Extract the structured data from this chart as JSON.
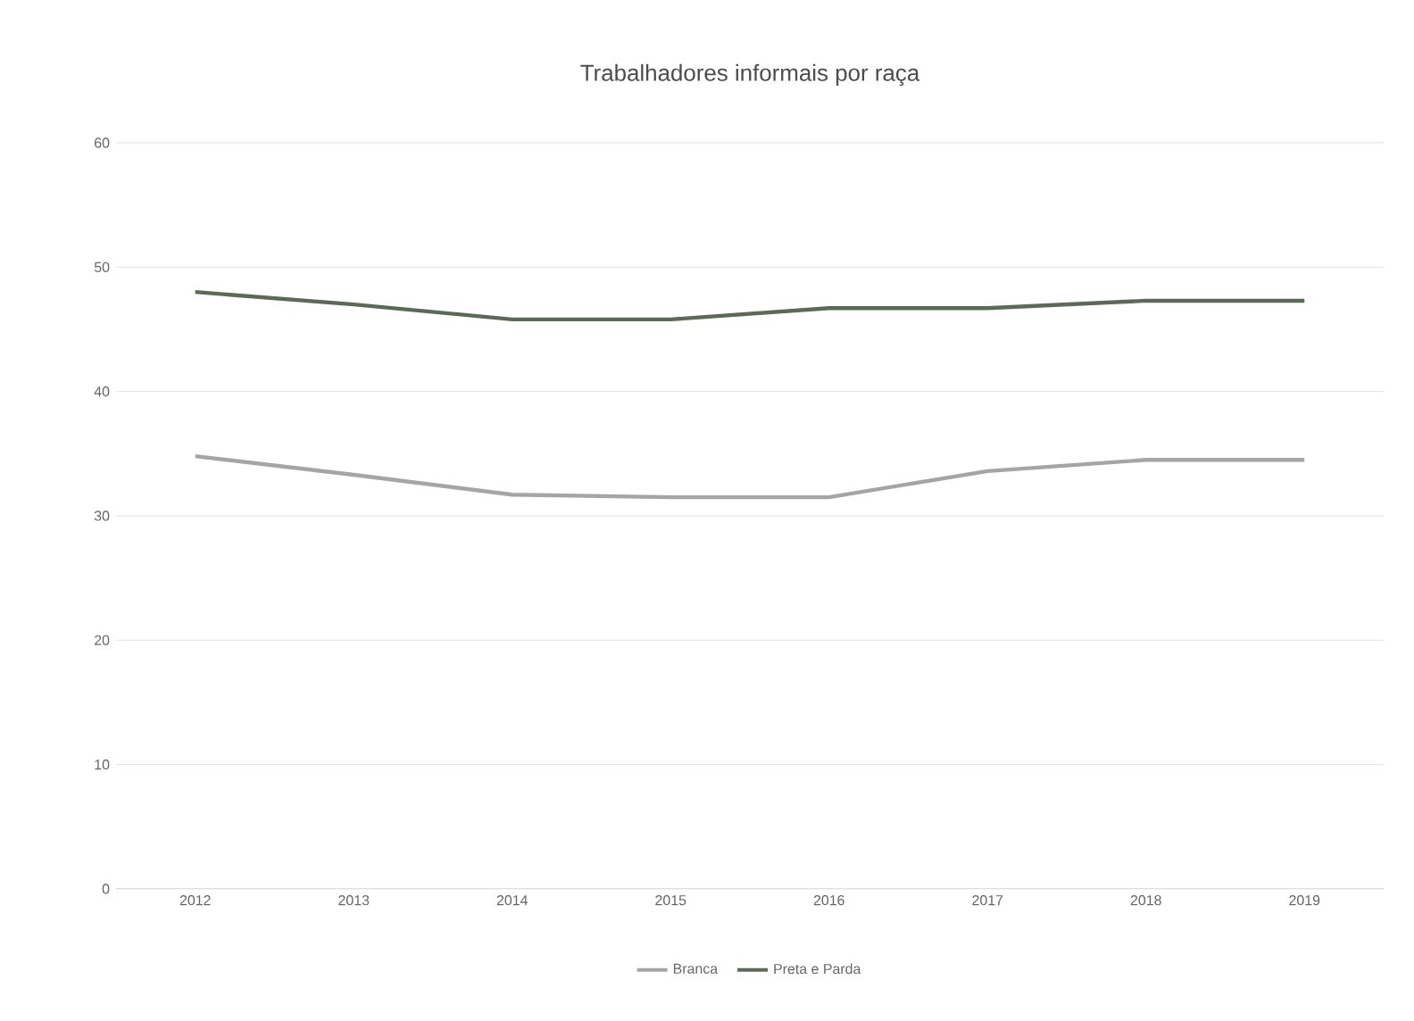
{
  "chart_data": {
    "type": "line",
    "title": "Trabalhadores informais por raça",
    "categories": [
      "2012",
      "2013",
      "2014",
      "2015",
      "2016",
      "2017",
      "2018",
      "2019"
    ],
    "series": [
      {
        "name": "Branca",
        "color": "#a5a5a5",
        "values": [
          34.8,
          33.3,
          31.7,
          31.5,
          31.5,
          33.6,
          34.5,
          34.5
        ]
      },
      {
        "name": "Preta e Parda",
        "color": "#5b6a56",
        "values": [
          48,
          47,
          45.8,
          45.8,
          46.7,
          46.7,
          47.3,
          47.3
        ]
      }
    ],
    "ylim": [
      0,
      60
    ],
    "yticks": [
      0,
      10,
      20,
      30,
      40,
      50,
      60
    ],
    "grid": "y",
    "legend": "bottom",
    "marker": "none",
    "line_style": "solid"
  }
}
